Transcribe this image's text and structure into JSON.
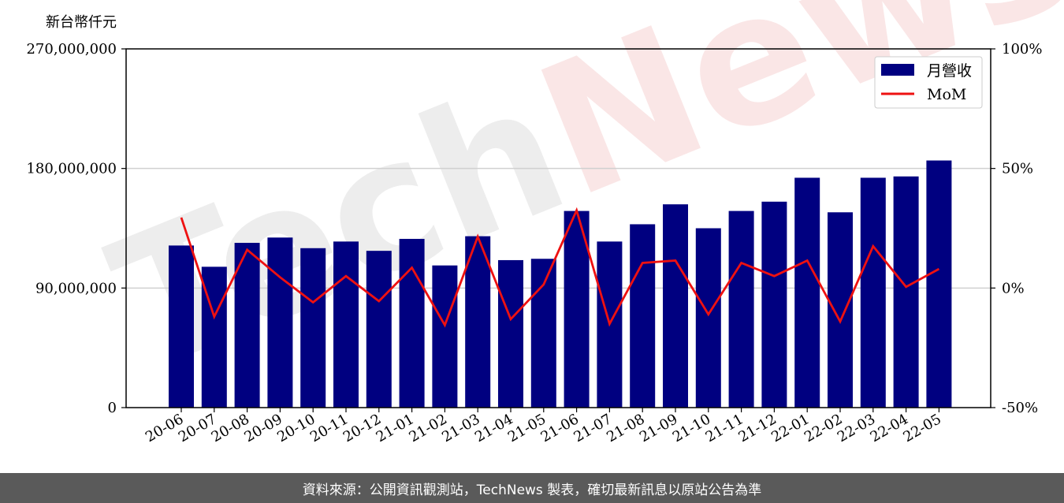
{
  "chart_data": {
    "type": "bar",
    "y_unit_label": "新台幣仟元",
    "categories": [
      "20-06",
      "20-07",
      "20-08",
      "20-09",
      "20-10",
      "20-11",
      "20-12",
      "21-01",
      "21-02",
      "21-03",
      "21-04",
      "21-05",
      "21-06",
      "21-07",
      "21-08",
      "21-09",
      "21-10",
      "21-11",
      "21-12",
      "22-01",
      "22-02",
      "22-03",
      "22-04",
      "22-05"
    ],
    "series": [
      {
        "name": "月營收",
        "type": "bar",
        "axis": "left",
        "color": "#000080",
        "values": [
          122000000,
          106000000,
          124000000,
          128000000,
          120000000,
          125000000,
          118000000,
          127000000,
          107000000,
          129000000,
          111000000,
          112000000,
          148000000,
          125000000,
          138000000,
          153000000,
          135000000,
          148000000,
          155000000,
          173000000,
          147000000,
          173000000,
          174000000,
          186000000
        ]
      },
      {
        "name": "MoM",
        "type": "line",
        "axis": "right",
        "color": "#ee1111",
        "values": [
          29.5,
          -12,
          16,
          4.5,
          -6,
          5,
          -5.5,
          8.5,
          -15.5,
          21.5,
          -13,
          1.5,
          32.5,
          -15,
          10.5,
          11.5,
          -11,
          10.5,
          5,
          11.5,
          -14,
          17.5,
          0.5,
          8
        ]
      }
    ],
    "y_left": {
      "min": 0,
      "max": 270000000,
      "ticks": [
        "0",
        "90,000,000",
        "180,000,000",
        "270,000,000"
      ]
    },
    "y_right": {
      "min": -50,
      "max": 100,
      "ticks": [
        "-50%",
        "0%",
        "50%",
        "100%"
      ]
    },
    "grid": "horizontal",
    "legend_position": "top-right"
  },
  "watermark": "TechNews",
  "footer": "資料來源：公開資訊觀測站，TechNews 製表，確切最新訊息以原站公告為準"
}
